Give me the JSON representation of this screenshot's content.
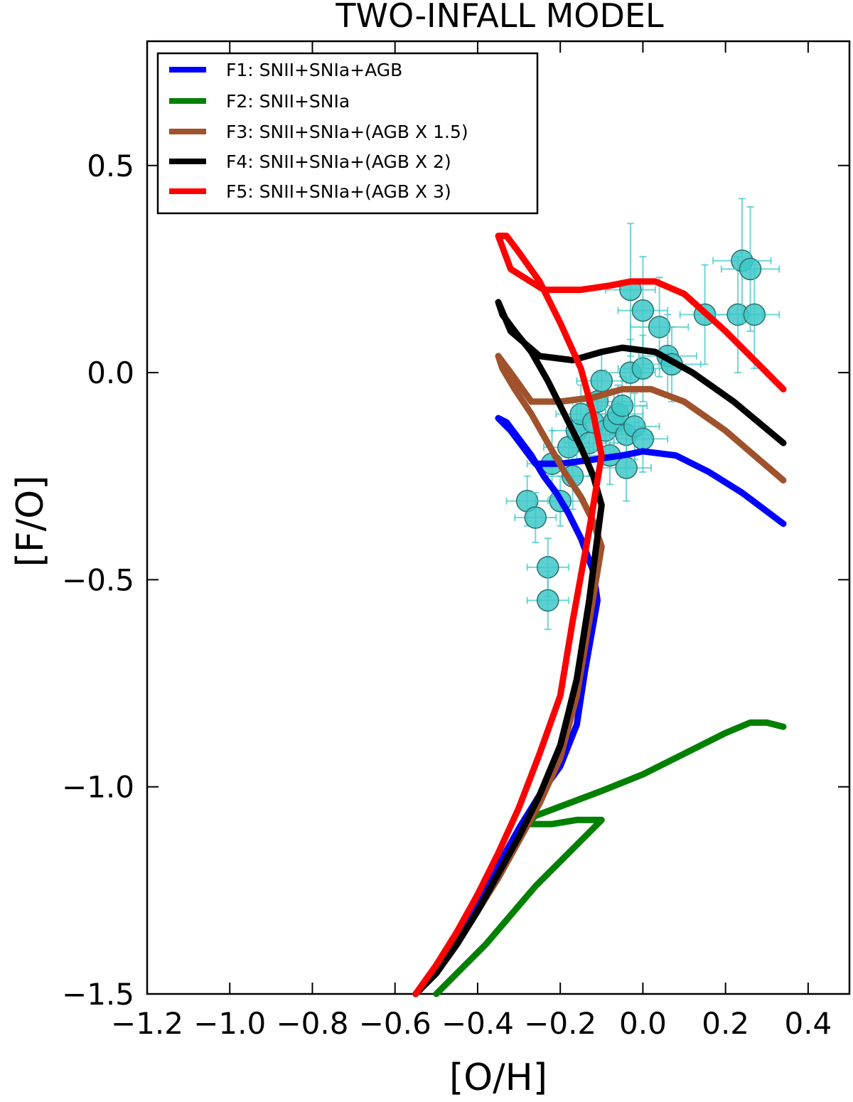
{
  "chart_data": {
    "type": "line",
    "title": "TWO-INFALL MODEL",
    "xlabel": "[O/H]",
    "ylabel": "[F/O]",
    "xlim": [
      -1.2,
      0.5
    ],
    "ylim": [
      -1.5,
      0.8
    ],
    "xticks": [
      -1.2,
      -1.0,
      -0.8,
      -0.6,
      -0.4,
      -0.2,
      0.0,
      0.2,
      0.4
    ],
    "yticks": [
      0.5,
      0.0,
      -0.5,
      -1.0,
      -1.5
    ],
    "xtick_labels": [
      "−1.2",
      "−1.0",
      "−0.8",
      "−0.6",
      "−0.4",
      "−0.2",
      "0.0",
      "0.2",
      "0.4"
    ],
    "ytick_labels": [
      "0.5",
      "0.0",
      "−0.5",
      "−1.0",
      "−1.5"
    ],
    "legend_position": "top-left",
    "series": [
      {
        "name": "F1: SNII+SNIa+AGB",
        "color": "#0000ff",
        "x": [
          -0.55,
          -0.5,
          -0.45,
          -0.4,
          -0.35,
          -0.3,
          -0.25,
          -0.2,
          -0.16,
          -0.14,
          -0.11,
          -0.12,
          -0.15,
          -0.18,
          -0.21,
          -0.24,
          -0.27,
          -0.3,
          -0.33,
          -0.35,
          -0.32,
          -0.26,
          -0.2,
          -0.12,
          -0.05,
          0.0,
          0.08,
          0.16,
          0.24,
          0.34
        ],
        "y": [
          -1.5,
          -1.45,
          -1.37,
          -1.28,
          -1.19,
          -1.1,
          -1.02,
          -0.95,
          -0.85,
          -0.72,
          -0.55,
          -0.48,
          -0.4,
          -0.34,
          -0.29,
          -0.25,
          -0.2,
          -0.16,
          -0.12,
          -0.11,
          -0.14,
          -0.22,
          -0.22,
          -0.21,
          -0.2,
          -0.19,
          -0.2,
          -0.24,
          -0.29,
          -0.365
        ]
      },
      {
        "name": "F2: SNII+SNIa",
        "color": "#008000",
        "x": [
          -0.5,
          -0.44,
          -0.38,
          -0.32,
          -0.26,
          -0.2,
          -0.16,
          -0.12,
          -0.1,
          -0.16,
          -0.22,
          -0.28,
          -0.26,
          -0.18,
          -0.1,
          0.0,
          0.1,
          0.2,
          0.26,
          0.3,
          0.34
        ],
        "y": [
          -1.5,
          -1.44,
          -1.38,
          -1.31,
          -1.24,
          -1.18,
          -1.14,
          -1.1,
          -1.08,
          -1.08,
          -1.09,
          -1.09,
          -1.07,
          -1.04,
          -1.01,
          -0.97,
          -0.92,
          -0.87,
          -0.845,
          -0.845,
          -0.855
        ]
      },
      {
        "name": "F3: SNII+SNIa+(AGB X 1.5)",
        "color": "#a0522d",
        "x": [
          -0.55,
          -0.5,
          -0.45,
          -0.4,
          -0.35,
          -0.3,
          -0.25,
          -0.2,
          -0.16,
          -0.13,
          -0.1,
          -0.12,
          -0.15,
          -0.19,
          -0.23,
          -0.27,
          -0.31,
          -0.34,
          -0.35,
          -0.32,
          -0.27,
          -0.2,
          -0.12,
          -0.05,
          0.02,
          0.1,
          0.2,
          0.34
        ],
        "y": [
          -1.5,
          -1.45,
          -1.38,
          -1.3,
          -1.22,
          -1.13,
          -1.04,
          -0.93,
          -0.78,
          -0.6,
          -0.42,
          -0.36,
          -0.3,
          -0.24,
          -0.17,
          -0.1,
          -0.04,
          0.01,
          0.04,
          0.0,
          -0.07,
          -0.07,
          -0.06,
          -0.04,
          -0.04,
          -0.07,
          -0.14,
          -0.26
        ]
      },
      {
        "name": "F4: SNII+SNIa+(AGB X 2)",
        "color": "#000000",
        "x": [
          -0.55,
          -0.5,
          -0.45,
          -0.4,
          -0.35,
          -0.3,
          -0.25,
          -0.2,
          -0.16,
          -0.13,
          -0.1,
          -0.12,
          -0.15,
          -0.19,
          -0.23,
          -0.27,
          -0.31,
          -0.34,
          -0.35,
          -0.32,
          -0.25,
          -0.17,
          -0.1,
          -0.05,
          0.03,
          0.12,
          0.22,
          0.34
        ],
        "y": [
          -1.5,
          -1.45,
          -1.38,
          -1.3,
          -1.21,
          -1.12,
          -1.02,
          -0.9,
          -0.74,
          -0.55,
          -0.32,
          -0.25,
          -0.18,
          -0.1,
          -0.02,
          0.05,
          0.1,
          0.14,
          0.17,
          0.1,
          0.04,
          0.03,
          0.05,
          0.06,
          0.05,
          0.0,
          -0.07,
          -0.17
        ]
      },
      {
        "name": "F5: SNII+SNIa+(AGB X 3)",
        "color": "#ff0000",
        "x": [
          -0.55,
          -0.5,
          -0.45,
          -0.4,
          -0.35,
          -0.3,
          -0.25,
          -0.2,
          -0.17,
          -0.13,
          -0.1,
          -0.12,
          -0.15,
          -0.2,
          -0.25,
          -0.3,
          -0.33,
          -0.35,
          -0.32,
          -0.24,
          -0.15,
          -0.08,
          -0.03,
          0.03,
          0.1,
          0.2,
          0.34
        ],
        "y": [
          -1.5,
          -1.43,
          -1.35,
          -1.26,
          -1.16,
          -1.05,
          -0.92,
          -0.78,
          -0.6,
          -0.38,
          -0.2,
          -0.1,
          0.01,
          0.12,
          0.22,
          0.29,
          0.33,
          0.33,
          0.25,
          0.2,
          0.2,
          0.21,
          0.22,
          0.22,
          0.19,
          0.1,
          -0.04
        ]
      }
    ],
    "observations": {
      "color": "#40c8c8",
      "points": [
        [
          -0.28,
          -0.31,
          0.05,
          0.06
        ],
        [
          -0.26,
          -0.35,
          0.05,
          0.06
        ],
        [
          -0.23,
          -0.47,
          0.05,
          0.07
        ],
        [
          -0.23,
          -0.55,
          0.05,
          0.07
        ],
        [
          -0.2,
          -0.31,
          0.06,
          0.06
        ],
        [
          -0.18,
          -0.18,
          0.06,
          0.07
        ],
        [
          -0.16,
          -0.14,
          0.06,
          0.07
        ],
        [
          -0.15,
          -0.1,
          0.06,
          0.07
        ],
        [
          -0.13,
          -0.17,
          0.06,
          0.08
        ],
        [
          -0.12,
          -0.12,
          0.06,
          0.07
        ],
        [
          -0.11,
          -0.07,
          0.06,
          0.07
        ],
        [
          -0.1,
          -0.02,
          0.06,
          0.07
        ],
        [
          -0.09,
          -0.14,
          0.06,
          0.08
        ],
        [
          -0.08,
          -0.2,
          0.06,
          0.07
        ],
        [
          -0.07,
          -0.12,
          0.06,
          0.08
        ],
        [
          -0.06,
          -0.1,
          0.06,
          0.07
        ],
        [
          -0.05,
          -0.08,
          0.06,
          0.07
        ],
        [
          -0.04,
          -0.15,
          0.06,
          0.08
        ],
        [
          -0.04,
          -0.23,
          0.06,
          0.08
        ],
        [
          -0.03,
          0.2,
          0.06,
          0.16
        ],
        [
          -0.03,
          0.0,
          0.06,
          0.08
        ],
        [
          -0.02,
          -0.13,
          0.06,
          0.08
        ],
        [
          0.0,
          -0.16,
          0.06,
          0.08
        ],
        [
          0.0,
          0.01,
          0.06,
          0.08
        ],
        [
          0.0,
          0.15,
          0.06,
          0.13
        ],
        [
          0.04,
          0.11,
          0.07,
          0.12
        ],
        [
          0.06,
          0.04,
          0.07,
          0.1
        ],
        [
          0.07,
          0.02,
          0.07,
          0.09
        ],
        [
          0.15,
          0.14,
          0.06,
          0.12
        ],
        [
          0.23,
          0.14,
          0.06,
          0.14
        ],
        [
          0.24,
          0.27,
          0.07,
          0.15
        ],
        [
          0.26,
          0.25,
          0.07,
          0.15
        ],
        [
          0.27,
          0.14,
          0.06,
          0.13
        ],
        [
          -0.22,
          -0.22,
          0.06,
          0.08
        ],
        [
          -0.17,
          -0.25,
          0.06,
          0.08
        ]
      ]
    }
  }
}
